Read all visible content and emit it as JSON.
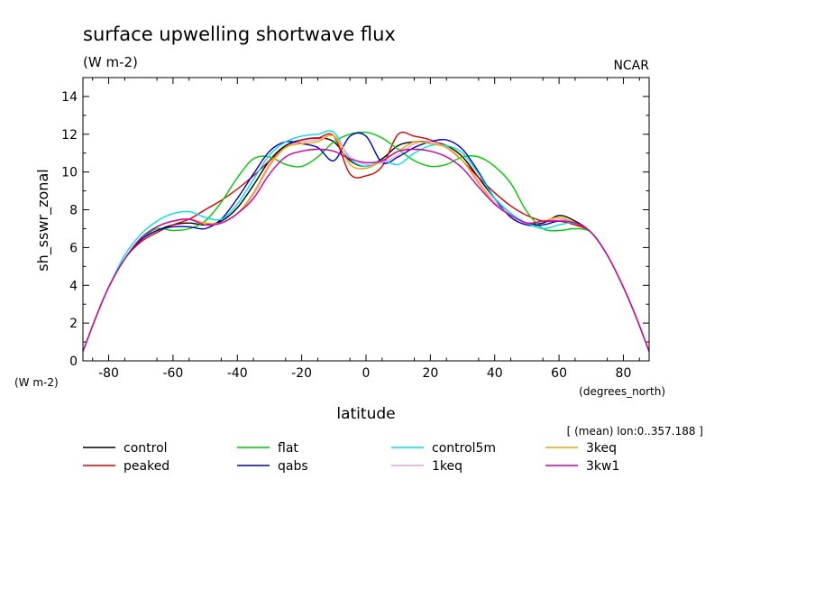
{
  "chart_data": {
    "type": "line",
    "title": "surface upwelling shortwave flux",
    "units_left": "(W m-2)",
    "source": "NCAR",
    "ylabel": "sh_sswr_zonal",
    "y_units": "(W m-2)",
    "xlabel": "latitude",
    "x_units": "(degrees_north)",
    "annotation": "[ (mean) lon:0..357.188 ]",
    "xlim": [
      -88,
      88
    ],
    "ylim": [
      0,
      15
    ],
    "xticks": [
      -80,
      -60,
      -40,
      -20,
      0,
      20,
      40,
      60,
      80
    ],
    "yticks": [
      0,
      2,
      4,
      6,
      8,
      10,
      12,
      14
    ],
    "xtick_labels": [
      "-80",
      "-60",
      "-40",
      "-20",
      "0",
      "20",
      "40",
      "60",
      "80"
    ],
    "ytick_labels": [
      "0",
      "2",
      "4",
      "6",
      "8",
      "10",
      "12",
      "14"
    ],
    "grid": false,
    "legend_placement": "bottom",
    "x": [
      -88,
      -84,
      -80,
      -75,
      -70,
      -65,
      -60,
      -55,
      -50,
      -45,
      -40,
      -35,
      -30,
      -25,
      -20,
      -15,
      -10,
      -5,
      0,
      5,
      10,
      15,
      20,
      25,
      30,
      35,
      40,
      45,
      50,
      55,
      60,
      65,
      70,
      75,
      80,
      84,
      88
    ],
    "series": [
      {
        "name": "control",
        "color": "#000000",
        "values": [
          0.5,
          2.3,
          3.9,
          5.4,
          6.4,
          6.9,
          7.2,
          7.3,
          7.2,
          7.4,
          8.1,
          9.3,
          10.6,
          11.4,
          11.7,
          11.8,
          11.6,
          10.6,
          10.3,
          10.7,
          11.4,
          11.6,
          11.6,
          11.4,
          10.8,
          9.7,
          8.6,
          7.8,
          7.3,
          7.3,
          7.7,
          7.4,
          6.8,
          5.6,
          3.9,
          2.3,
          0.5
        ]
      },
      {
        "name": "peaked",
        "color": "#dd0000",
        "values": [
          0.5,
          2.3,
          3.9,
          5.4,
          6.3,
          6.8,
          7.2,
          7.5,
          8.0,
          8.5,
          9.1,
          9.8,
          10.6,
          11.3,
          11.7,
          11.8,
          11.9,
          9.9,
          9.8,
          10.3,
          12.0,
          11.9,
          11.7,
          11.3,
          10.6,
          9.7,
          8.9,
          8.2,
          7.7,
          7.4,
          7.4,
          7.2,
          6.8,
          5.6,
          3.9,
          2.3,
          0.5
        ]
      },
      {
        "name": "flat",
        "color": "#00cc00",
        "values": [
          0.5,
          2.3,
          3.9,
          5.4,
          6.4,
          7.0,
          6.9,
          7.0,
          7.4,
          8.4,
          9.7,
          10.7,
          10.8,
          10.4,
          10.3,
          10.8,
          11.6,
          12.0,
          12.1,
          11.8,
          11.2,
          10.6,
          10.3,
          10.4,
          10.8,
          10.8,
          10.3,
          9.4,
          7.9,
          7.0,
          6.9,
          7.0,
          6.8,
          5.6,
          3.9,
          2.3,
          0.5
        ]
      },
      {
        "name": "qabs",
        "color": "#0000cc",
        "values": [
          0.5,
          2.3,
          3.9,
          5.4,
          6.4,
          6.9,
          7.1,
          7.1,
          7.0,
          7.5,
          8.6,
          9.9,
          11.1,
          11.6,
          11.5,
          11.3,
          10.6,
          11.9,
          11.9,
          10.5,
          10.8,
          11.3,
          11.6,
          11.7,
          11.2,
          10.0,
          8.6,
          7.6,
          7.2,
          7.2,
          7.4,
          7.3,
          6.8,
          5.6,
          3.9,
          2.3,
          0.5
        ]
      },
      {
        "name": "control5m",
        "color": "#00e0e8",
        "values": [
          0.5,
          2.3,
          3.9,
          5.6,
          6.7,
          7.4,
          7.8,
          7.9,
          7.6,
          7.5,
          8.3,
          9.6,
          10.9,
          11.6,
          11.9,
          12.0,
          12.1,
          10.7,
          10.3,
          10.6,
          10.4,
          11.0,
          11.4,
          11.4,
          11.0,
          9.9,
          8.6,
          7.8,
          7.3,
          7.0,
          7.2,
          7.3,
          6.8,
          5.6,
          3.9,
          2.3,
          0.5
        ]
      },
      {
        "name": "1keq",
        "color": "#f0a0e0",
        "values": [
          0.5,
          2.3,
          3.9,
          5.4,
          6.5,
          7.1,
          7.4,
          7.5,
          7.3,
          7.3,
          7.8,
          8.8,
          10.3,
          11.3,
          11.6,
          11.7,
          11.9,
          10.8,
          10.4,
          10.5,
          10.9,
          11.5,
          11.6,
          11.3,
          10.6,
          9.5,
          8.4,
          7.7,
          7.3,
          7.4,
          7.5,
          7.3,
          6.8,
          5.6,
          3.9,
          2.3,
          0.5
        ]
      },
      {
        "name": "3keq",
        "color": "#e8a800",
        "values": [
          0.5,
          2.3,
          3.9,
          5.4,
          6.5,
          7.1,
          7.4,
          7.5,
          7.3,
          7.3,
          7.8,
          8.9,
          10.4,
          11.3,
          11.5,
          11.6,
          11.9,
          10.4,
          10.2,
          10.6,
          11.1,
          11.6,
          11.5,
          11.3,
          10.6,
          9.4,
          8.3,
          7.7,
          7.3,
          7.4,
          7.6,
          7.3,
          6.8,
          5.6,
          3.9,
          2.3,
          0.5
        ]
      },
      {
        "name": "3kw1",
        "color": "#cc00aa",
        "values": [
          0.5,
          2.3,
          3.9,
          5.4,
          6.5,
          7.1,
          7.4,
          7.5,
          7.2,
          7.3,
          7.8,
          8.6,
          9.9,
          10.8,
          11.1,
          11.2,
          11.1,
          10.7,
          10.5,
          10.6,
          11.1,
          11.2,
          11.1,
          10.8,
          10.2,
          9.2,
          8.3,
          7.7,
          7.3,
          7.4,
          7.4,
          7.3,
          6.8,
          5.6,
          3.9,
          2.3,
          0.5
        ]
      }
    ]
  }
}
